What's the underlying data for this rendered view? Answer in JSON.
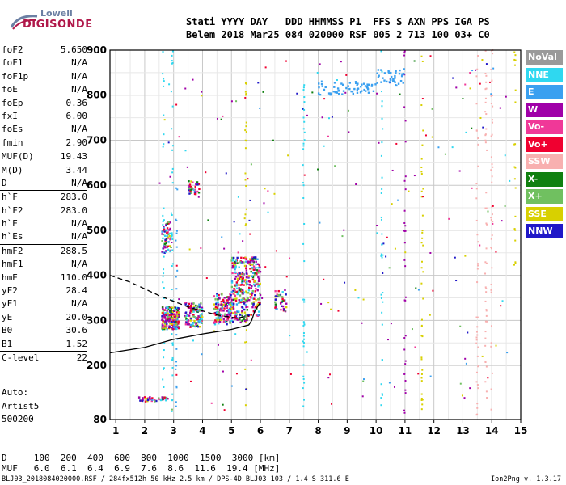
{
  "logo": {
    "line1": "Lowell",
    "line2": "DIGISONDE"
  },
  "header": {
    "line1": "Stati YYYY DAY   DDD HHMMSS P1  FFS S AXN PPS IGA PS",
    "line2": "Belem 2018 Mar25 084 020000 RSF 005 2 713 100 03+ C0"
  },
  "params": [
    {
      "label": "foF2",
      "value": "5.650"
    },
    {
      "label": "foF1",
      "value": "N/A"
    },
    {
      "label": "foF1p",
      "value": "N/A"
    },
    {
      "label": "foE",
      "value": "N/A"
    },
    {
      "label": "foEp",
      "value": "0.36"
    },
    {
      "label": "fxI",
      "value": "6.00"
    },
    {
      "label": "foEs",
      "value": "N/A"
    },
    {
      "label": "fmin",
      "value": "2.90"
    },
    {
      "label": "MUF(D)",
      "value": "19.43"
    },
    {
      "label": "M(D)",
      "value": "3.44"
    },
    {
      "label": "D",
      "value": "N/A"
    },
    {
      "label": "h`F",
      "value": "283.0"
    },
    {
      "label": "h`F2",
      "value": "283.0"
    },
    {
      "label": "h`E",
      "value": "N/A"
    },
    {
      "label": "h`Es",
      "value": "N/A"
    },
    {
      "label": "hmF2",
      "value": "288.5"
    },
    {
      "label": "hmF1",
      "value": "N/A"
    },
    {
      "label": "hmE",
      "value": "110.0"
    },
    {
      "label": "yF2",
      "value": "28.4"
    },
    {
      "label": "yF1",
      "value": "N/A"
    },
    {
      "label": "yE",
      "value": "20.0"
    },
    {
      "label": "B0",
      "value": "30.6"
    },
    {
      "label": "B1",
      "value": "1.52"
    },
    {
      "label": "C-level",
      "value": "22"
    }
  ],
  "auto": {
    "line1": "Auto:",
    "line2": "Artist5",
    "line3": "500200"
  },
  "legend": [
    {
      "label": "NoVal",
      "color": "#9a9a9a"
    },
    {
      "label": "NNE",
      "color": "#2fd8f0"
    },
    {
      "label": "E",
      "color": "#3aa0f0"
    },
    {
      "label": "W",
      "color": "#a000a8"
    },
    {
      "label": "Vo-",
      "color": "#f03898"
    },
    {
      "label": "Vo+",
      "color": "#f00030"
    },
    {
      "label": "SSW",
      "color": "#f8b0b0"
    },
    {
      "label": "X-",
      "color": "#108010"
    },
    {
      "label": "X+",
      "color": "#70c060"
    },
    {
      "label": "SSE",
      "color": "#d8d000"
    },
    {
      "label": "NNW",
      "color": "#2018c8"
    }
  ],
  "footer": {
    "line1": "D     100  200  400  600  800  1000  1500  3000 [km]",
    "line2": "MUF   6.0  6.1  6.4  6.9  7.6  8.6  11.6  19.4 [MHz]",
    "file_line": "BLJ03_2018084020000.RSF / 284fx512h 50 kHz 2.5 km / DPS-4D BLJ03 103 / 1.4 S 311.6 E",
    "version": "Ion2Png v. 1.3.17"
  },
  "chart_data": {
    "type": "scatter",
    "title": "",
    "xlabel": "",
    "ylabel": "",
    "xlim": [
      0.8,
      15.0
    ],
    "ylim": [
      80,
      900
    ],
    "x_ticks": [
      1,
      2,
      3,
      4,
      5,
      6,
      7,
      8,
      9,
      10,
      11,
      12,
      13,
      14,
      15
    ],
    "y_ticks": [
      80,
      200,
      300,
      400,
      500,
      600,
      700,
      800,
      900
    ],
    "grid": true,
    "ionogram_clusters": [
      {
        "x": [
          2.6,
          3.2
        ],
        "y": [
          280,
          330
        ],
        "density": 200,
        "mode": "mixed"
      },
      {
        "x": [
          3.4,
          4.0
        ],
        "y": [
          285,
          340
        ],
        "density": 120,
        "mode": "mixed"
      },
      {
        "x": [
          4.4,
          5.0
        ],
        "y": [
          290,
          360
        ],
        "density": 160,
        "mode": "mixed"
      },
      {
        "x": [
          5.0,
          5.6
        ],
        "y": [
          295,
          440
        ],
        "density": 220,
        "mode": "mixed"
      },
      {
        "x": [
          5.6,
          6.0
        ],
        "y": [
          310,
          440
        ],
        "density": 120,
        "mode": "mixed"
      },
      {
        "x": [
          6.5,
          6.9
        ],
        "y": [
          320,
          380
        ],
        "density": 40,
        "mode": "mixed"
      },
      {
        "x": [
          2.6,
          2.9
        ],
        "y": [
          450,
          520
        ],
        "density": 60,
        "mode": "mixed"
      },
      {
        "x": [
          3.5,
          3.9
        ],
        "y": [
          580,
          610
        ],
        "density": 30,
        "mode": "mixed"
      },
      {
        "x": [
          8.0,
          10.0
        ],
        "y": [
          800,
          830
        ],
        "density": 60,
        "mode": "E"
      },
      {
        "x": [
          10.0,
          11.0
        ],
        "y": [
          820,
          860
        ],
        "density": 40,
        "mode": "E"
      },
      {
        "x": [
          1.8,
          2.8
        ],
        "y": [
          120,
          130
        ],
        "density": 40,
        "mode": "mixed"
      }
    ],
    "vertical_streaks": [
      {
        "x": 2.65,
        "y": [
          90,
          900
        ],
        "mode": "NNE"
      },
      {
        "x": 2.95,
        "y": [
          90,
          900
        ],
        "mode": "NNE"
      },
      {
        "x": 3.1,
        "y": [
          90,
          600
        ],
        "mode": "E"
      },
      {
        "x": 5.5,
        "y": [
          90,
          900
        ],
        "mode": "SSE"
      },
      {
        "x": 7.5,
        "y": [
          90,
          900
        ],
        "mode": "NNE"
      },
      {
        "x": 10.2,
        "y": [
          90,
          900
        ],
        "mode": "NNE"
      },
      {
        "x": 11.0,
        "y": [
          90,
          900
        ],
        "mode": "W"
      },
      {
        "x": 11.6,
        "y": [
          90,
          900
        ],
        "mode": "SSE"
      },
      {
        "x": 13.5,
        "y": [
          90,
          900
        ],
        "mode": "SSW"
      },
      {
        "x": 13.8,
        "y": [
          90,
          900
        ],
        "mode": "SSW"
      },
      {
        "x": 14.0,
        "y": [
          90,
          900
        ],
        "mode": "SSW"
      },
      {
        "x": 14.8,
        "y": [
          400,
          900
        ],
        "mode": "SSE"
      }
    ],
    "profile_curve": {
      "solid": [
        [
          0.8,
          228
        ],
        [
          2.0,
          240
        ],
        [
          3.0,
          258
        ],
        [
          4.0,
          270
        ],
        [
          5.0,
          280
        ],
        [
          5.6,
          290
        ],
        [
          5.7,
          300
        ],
        [
          5.8,
          320
        ],
        [
          6.0,
          340
        ]
      ],
      "dashed": [
        [
          0.8,
          400
        ],
        [
          1.5,
          385
        ],
        [
          2.5,
          355
        ],
        [
          3.5,
          330
        ],
        [
          4.5,
          312
        ],
        [
          5.2,
          305
        ],
        [
          5.6,
          310
        ]
      ]
    }
  }
}
